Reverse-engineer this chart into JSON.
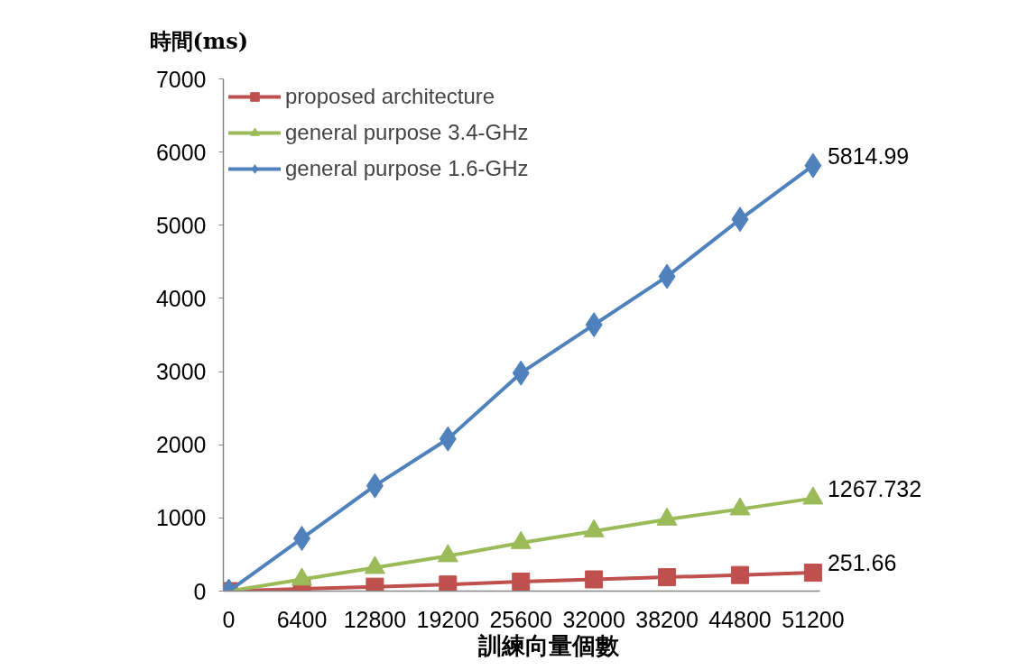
{
  "chart_data": {
    "type": "line",
    "xlabel": "訓練向量個數",
    "ylabel": "時間(ms)",
    "categories": [
      "0",
      "6400",
      "12800",
      "19200",
      "25600",
      "32000",
      "38200",
      "44800",
      "51200"
    ],
    "series": [
      {
        "name": "proposed architecture",
        "color": "#c0504d",
        "marker": "square",
        "values": [
          0,
          30,
          60,
          90,
          130,
          160,
          190,
          220,
          251.66
        ],
        "value_labels": [
          null,
          null,
          null,
          null,
          null,
          null,
          null,
          null,
          "251.66"
        ]
      },
      {
        "name": "general purpose 3.4-GHz",
        "color": "#9bbb59",
        "marker": "triangle",
        "values": [
          0,
          160,
          320,
          480,
          660,
          820,
          980,
          1120,
          1267.732
        ],
        "value_labels": [
          null,
          null,
          null,
          null,
          null,
          null,
          null,
          null,
          "1267.732"
        ]
      },
      {
        "name": "general purpose 1.6-GHz",
        "color": "#4f81bd",
        "marker": "diamond",
        "values": [
          0,
          720,
          1440,
          2080,
          2980,
          3640,
          4300,
          5080,
          5814.99
        ],
        "value_labels": [
          null,
          null,
          null,
          null,
          null,
          null,
          null,
          null,
          "5814.99"
        ]
      }
    ],
    "ylim": [
      0,
      7000
    ],
    "yticks": [
      0,
      1000,
      2000,
      3000,
      4000,
      5000,
      6000,
      7000
    ],
    "legend": "top left"
  }
}
